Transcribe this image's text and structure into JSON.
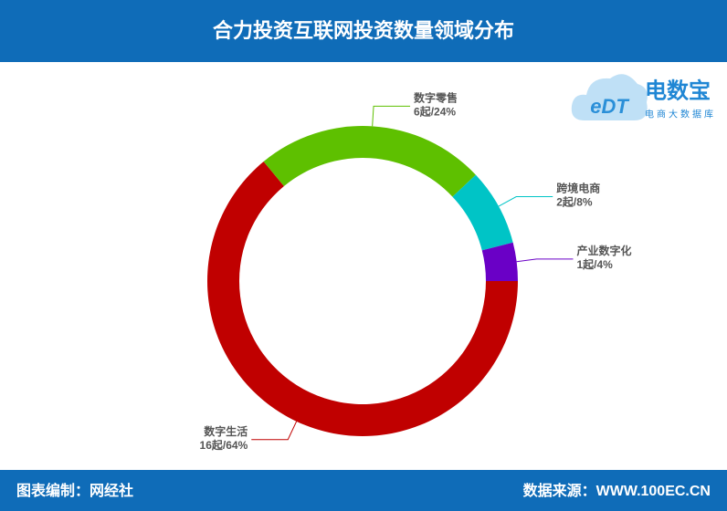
{
  "header": {
    "title": "合力投资互联网投资数量领域分布"
  },
  "logo": {
    "mark": "eDT",
    "name": "电数宝",
    "tagline": "电商大数据库"
  },
  "chart_data": {
    "type": "donut",
    "categories": [
      "数字生活",
      "数字零售",
      "跨境电商",
      "产业数字化"
    ],
    "values": [
      16,
      6,
      2,
      1
    ],
    "value_labels": [
      "16起/64%",
      "6起/24%",
      "2起/8%",
      "1起/4%"
    ],
    "colors": [
      "#c00000",
      "#5ec000",
      "#00c4c6",
      "#6a00c6"
    ]
  },
  "footer": {
    "left": "图表编制：网经社",
    "right": "数据来源：WWW.100EC.CN"
  }
}
